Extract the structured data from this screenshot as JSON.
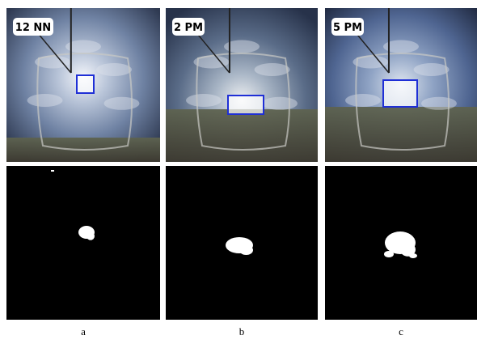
{
  "panels": [
    {
      "label": "12 NN",
      "caption": "a"
    },
    {
      "label": "2 PM",
      "caption": "b"
    },
    {
      "label": "5 PM",
      "caption": "c"
    }
  ]
}
